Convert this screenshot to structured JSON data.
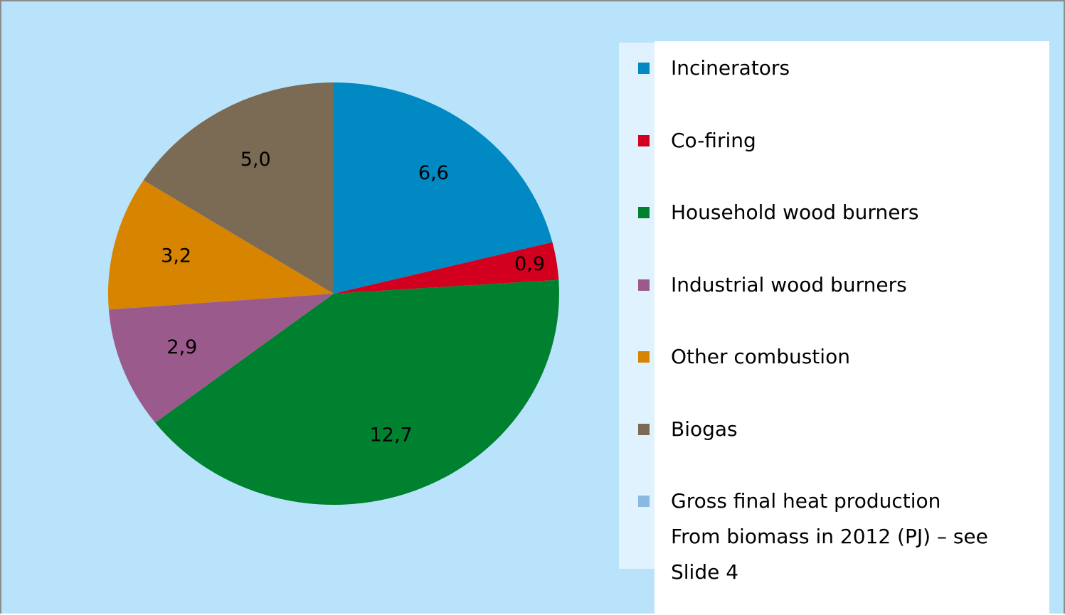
{
  "chart_data": {
    "type": "pie",
    "categories": [
      "Incinerators",
      "Co-firing",
      "Household wood burners",
      "Industrial wood burners",
      "Other combustion",
      "Biogas",
      "Gross final heat production From biomass in 2012 (PJ) – see Slide 4"
    ],
    "values": [
      6.6,
      0.9,
      12.7,
      2.9,
      3.2,
      5.0,
      null
    ],
    "value_labels": [
      "6,6",
      "0,9",
      "12,7",
      "2,9",
      "3,2",
      "5,0",
      null
    ],
    "colors": [
      "#0089c2",
      "#d2001e",
      "#00812f",
      "#9b5a8c",
      "#d78400",
      "#7b6b55",
      "#8ab8e0"
    ],
    "legend": "right"
  }
}
